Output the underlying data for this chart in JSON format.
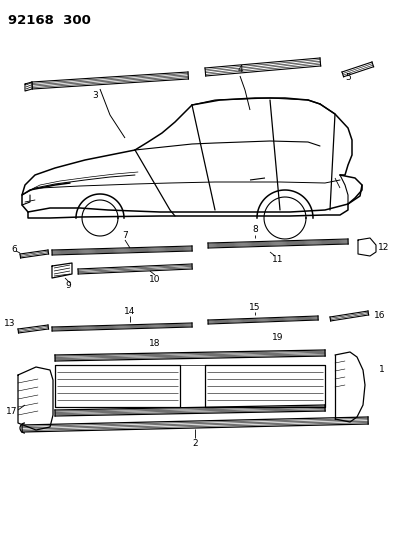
{
  "title": "92168  300",
  "bg_color": "#ffffff",
  "fig_width": 3.95,
  "fig_height": 5.33,
  "dpi": 100
}
